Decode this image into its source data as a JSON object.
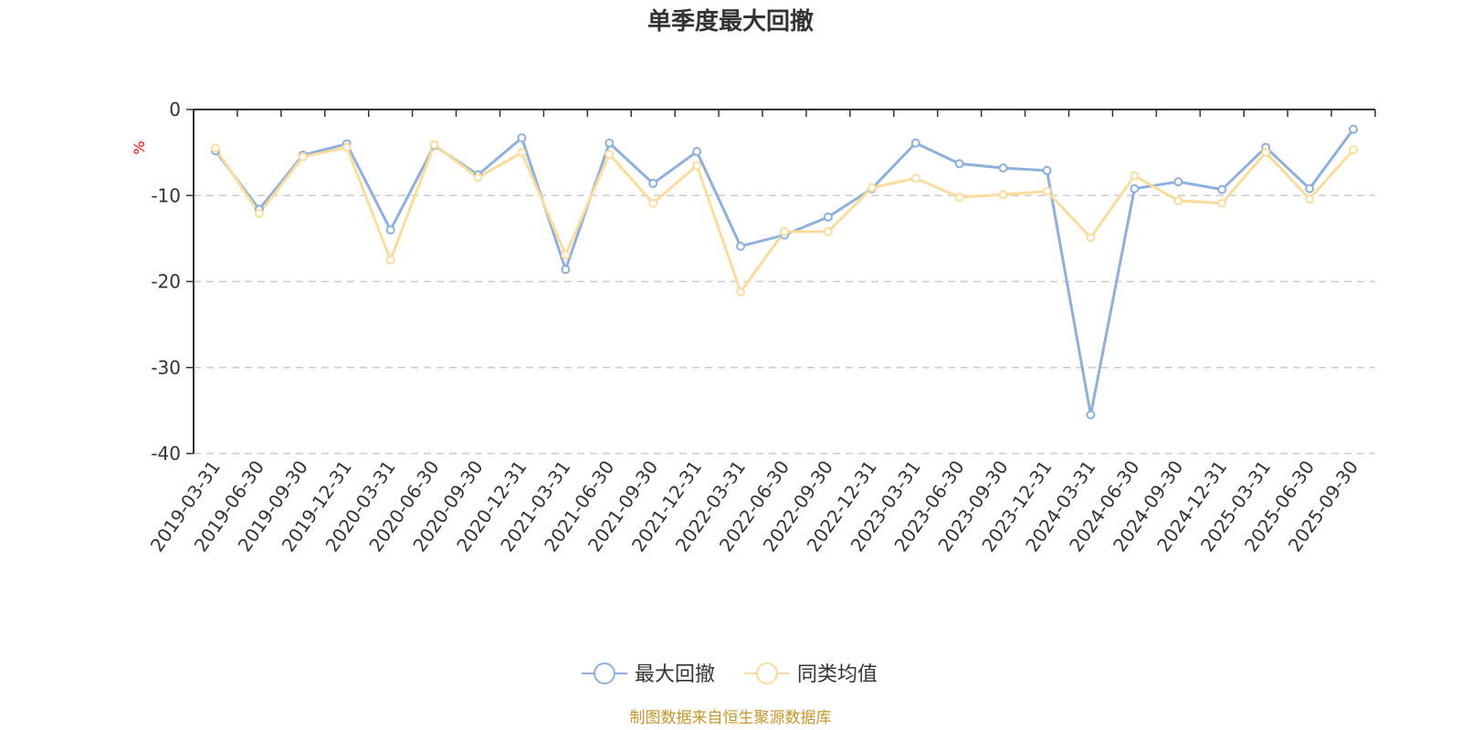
{
  "chart_data": {
    "type": "line",
    "title": "单季度最大回撤",
    "ylabel": "%",
    "ylim": [
      -40,
      0
    ],
    "yticks": [
      0,
      -10,
      -20,
      -30,
      -40
    ],
    "grid": true,
    "legend_position": "bottom",
    "categories": [
      "2019-03-31",
      "2019-06-30",
      "2019-09-30",
      "2019-12-31",
      "2020-03-31",
      "2020-06-30",
      "2020-09-30",
      "2020-12-31",
      "2021-03-31",
      "2021-06-30",
      "2021-09-30",
      "2021-12-31",
      "2022-03-31",
      "2022-06-30",
      "2022-09-30",
      "2022-12-31",
      "2023-03-31",
      "2023-06-30",
      "2023-09-30",
      "2023-12-31",
      "2024-03-31",
      "2024-06-30",
      "2024-09-30",
      "2024-12-31",
      "2025-03-31",
      "2025-06-30",
      "2025-09-30"
    ],
    "series": [
      {
        "name": "最大回撤",
        "color": "#8eb0dd",
        "values": [
          -4.8,
          -11.6,
          -5.3,
          -4.0,
          -14.0,
          -4.2,
          -7.6,
          -3.3,
          -18.6,
          -3.9,
          -8.6,
          -4.9,
          -15.9,
          -14.6,
          -12.5,
          -9.2,
          -3.9,
          -6.3,
          -6.8,
          -7.1,
          -35.5,
          -9.2,
          -8.4,
          -9.3,
          -4.4,
          -9.2,
          -2.3
        ]
      },
      {
        "name": "同类均值",
        "color": "#fcdc9b",
        "values": [
          -4.5,
          -12.1,
          -5.5,
          -4.4,
          -17.5,
          -4.1,
          -7.9,
          -5.0,
          -16.9,
          -5.2,
          -10.9,
          -6.5,
          -21.2,
          -14.2,
          -14.2,
          -9.1,
          -8.0,
          -10.2,
          -9.9,
          -9.5,
          -14.9,
          -7.7,
          -10.6,
          -10.9,
          -5.0,
          -10.4,
          -4.7
        ]
      }
    ]
  },
  "footer": {
    "source": "制图数据来自恒生聚源数据库",
    "source_color": "#c9962b"
  },
  "colors": {
    "axis": "#333333",
    "grid": "#cccccc",
    "unit": "#ff0000"
  }
}
